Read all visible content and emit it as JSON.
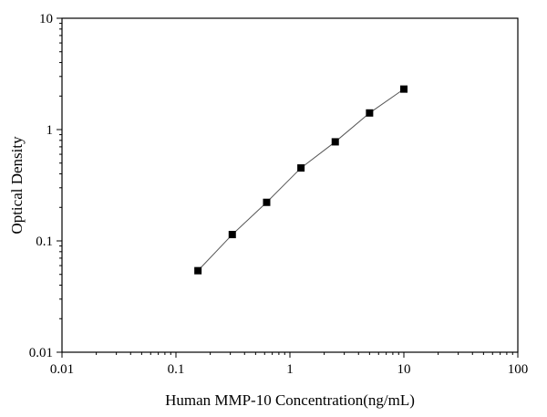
{
  "chart_data": {
    "type": "scatter",
    "title": "",
    "xlabel": "Human MMP-10 Concentration(ng/mL)",
    "ylabel": "Optical Density",
    "xscale": "log",
    "yscale": "log",
    "xlim": [
      0.01,
      100
    ],
    "ylim": [
      0.01,
      10
    ],
    "x_ticks": [
      0.01,
      0.1,
      1,
      10,
      100
    ],
    "x_tick_labels": [
      "0.01",
      "0.1",
      "1",
      "10",
      "100"
    ],
    "y_ticks": [
      0.01,
      0.1,
      1,
      10
    ],
    "y_tick_labels": [
      "0.01",
      "0.1",
      "1",
      "10"
    ],
    "grid": false,
    "fit_line": true,
    "marker": "square",
    "color": "#000000",
    "series": [
      {
        "x": [
          0.156,
          0.312,
          0.625,
          1.25,
          2.5,
          5,
          10
        ],
        "y": [
          0.054,
          0.114,
          0.222,
          0.452,
          0.776,
          1.41,
          2.31
        ]
      }
    ]
  }
}
